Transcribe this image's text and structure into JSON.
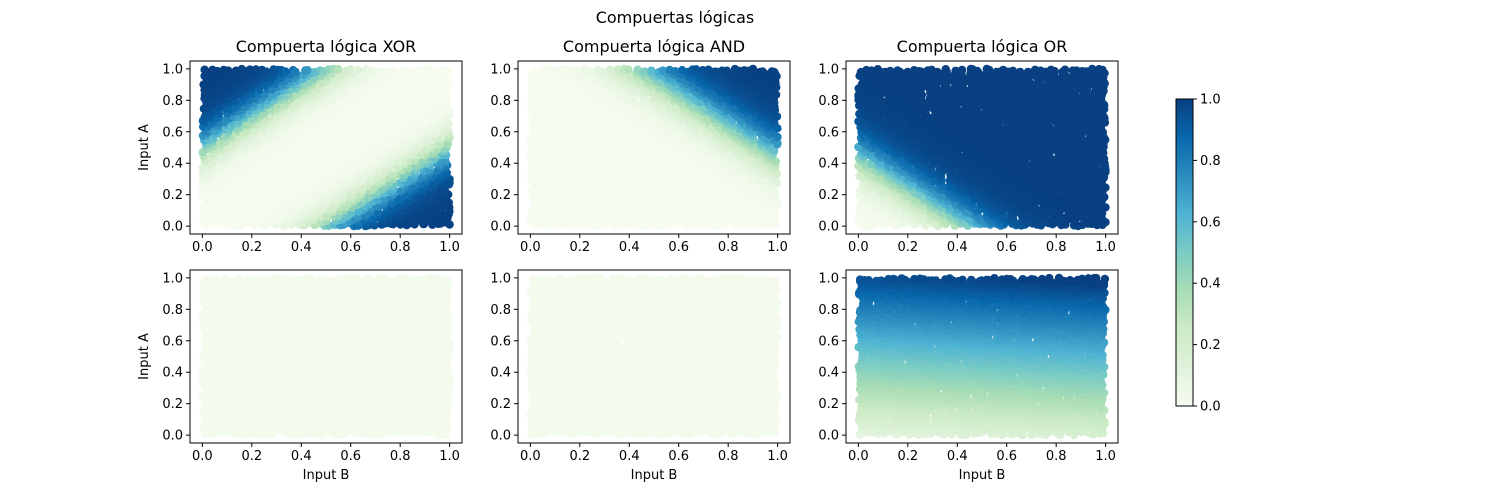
{
  "figure": {
    "suptitle": "Compuertas lógicas"
  },
  "chart_data": [
    {
      "type": "scatter",
      "title": "Compuerta lógica XOR",
      "xlabel": "",
      "ylabel": "Input A",
      "xlim": [
        -0.05,
        1.05
      ],
      "ylim": [
        -0.05,
        1.05
      ],
      "xticks": [
        "0.0",
        "0.2",
        "0.4",
        "0.6",
        "0.8",
        "1.0"
      ],
      "yticks": [
        "0.0",
        "0.2",
        "0.4",
        "0.6",
        "0.8",
        "1.0"
      ],
      "x_field": "Input B",
      "y_field": "Input A",
      "value_description": "predicted output in [0,1]; high (≈1) where |A−B| is large: top-left and bottom-right corners; ≈0 along the diagonal",
      "surface": "xor",
      "points_per_axis": 48
    },
    {
      "type": "scatter",
      "title": "Compuerta lógica AND",
      "xlabel": "",
      "ylabel": "",
      "xlim": [
        -0.05,
        1.05
      ],
      "ylim": [
        -0.05,
        1.05
      ],
      "xticks": [
        "0.0",
        "0.2",
        "0.4",
        "0.6",
        "0.8",
        "1.0"
      ],
      "yticks": [
        "0.0",
        "0.2",
        "0.4",
        "0.6",
        "0.8",
        "1.0"
      ],
      "x_field": "Input B",
      "y_field": "Input A",
      "value_description": "predicted output in [0,1]; high (≈1) only in the top-right corner where A and B are both near 1",
      "surface": "and",
      "points_per_axis": 48
    },
    {
      "type": "scatter",
      "title": "Compuerta lógica OR",
      "xlabel": "",
      "ylabel": "",
      "xlim": [
        -0.05,
        1.05
      ],
      "ylim": [
        -0.05,
        1.05
      ],
      "xticks": [
        "0.0",
        "0.2",
        "0.4",
        "0.6",
        "0.8",
        "1.0"
      ],
      "yticks": [
        "0.0",
        "0.2",
        "0.4",
        "0.6",
        "0.8",
        "1.0"
      ],
      "x_field": "Input B",
      "y_field": "Input A",
      "value_description": "predicted output in [0,1]; ≈1 everywhere except the bottom-left corner near A=0, B=0",
      "surface": "or",
      "points_per_axis": 48
    },
    {
      "type": "scatter",
      "title": "",
      "xlabel": "Input B",
      "ylabel": "Input A",
      "xlim": [
        -0.05,
        1.05
      ],
      "ylim": [
        -0.05,
        1.05
      ],
      "xticks": [
        "0.0",
        "0.2",
        "0.4",
        "0.6",
        "0.8",
        "1.0"
      ],
      "yticks": [
        "0.0",
        "0.2",
        "0.4",
        "0.6",
        "0.8",
        "1.0"
      ],
      "x_field": "Input B",
      "y_field": "Input A",
      "value_description": "predicted output ≈0 everywhere (uniform very light green)",
      "surface": "zero",
      "points_per_axis": 48
    },
    {
      "type": "scatter",
      "title": "",
      "xlabel": "Input B",
      "ylabel": "",
      "xlim": [
        -0.05,
        1.05
      ],
      "ylim": [
        -0.05,
        1.05
      ],
      "xticks": [
        "0.0",
        "0.2",
        "0.4",
        "0.6",
        "0.8",
        "1.0"
      ],
      "yticks": [
        "0.0",
        "0.2",
        "0.4",
        "0.6",
        "0.8",
        "1.0"
      ],
      "x_field": "Input B",
      "y_field": "Input A",
      "value_description": "predicted output ≈0 everywhere (uniform very light green)",
      "surface": "zero",
      "points_per_axis": 48
    },
    {
      "type": "scatter",
      "title": "",
      "xlabel": "Input B",
      "ylabel": "",
      "xlim": [
        -0.05,
        1.05
      ],
      "ylim": [
        -0.05,
        1.05
      ],
      "xticks": [
        "0.0",
        "0.2",
        "0.4",
        "0.6",
        "0.8",
        "1.0"
      ],
      "yticks": [
        "0.0",
        "0.2",
        "0.4",
        "0.6",
        "0.8",
        "1.0"
      ],
      "x_field": "Input B",
      "y_field": "Input A",
      "value_description": "predicted output increases smoothly with Input A (≈0.1 at A=0 to ≈1 at A=1), slightly higher toward larger Input B",
      "surface": "gradient",
      "points_per_axis": 48
    }
  ],
  "colorbar": {
    "cmap": "GnBu",
    "range": [
      0.0,
      1.0
    ],
    "ticks": [
      "0.0",
      "0.2",
      "0.4",
      "0.6",
      "0.8",
      "1.0"
    ],
    "colors": [
      "#f7fcf0",
      "#e0f3db",
      "#ccebc5",
      "#a8ddb5",
      "#7bccc4",
      "#4eb3d3",
      "#2b8cbe",
      "#0868ac",
      "#084081"
    ]
  }
}
